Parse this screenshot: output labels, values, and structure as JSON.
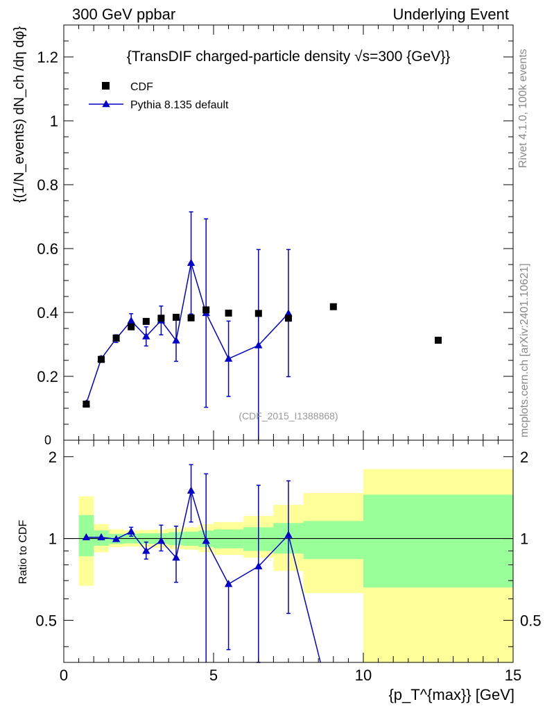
{
  "header": {
    "left": "300 GeV ppbar",
    "right": "Underlying Event"
  },
  "side_labels": {
    "rivet": "Rivet 4.1.0,  100k events",
    "mcplots": "mcplots.cern.ch [arXiv:2401.10621]"
  },
  "chart_data": [
    {
      "type": "scatter",
      "panel": "main",
      "title": "{TransDIF charged-particle density √s=300 {GeV}}",
      "ylabel": "{(1/N_events) dN_ch /dη dφ}",
      "xlabel": "{p_T^{max}} [GeV]",
      "xlim": [
        0,
        15
      ],
      "ylim": [
        0,
        1.3
      ],
      "yticks": [
        0.2,
        0.4,
        0.6,
        0.8,
        1,
        1.2
      ],
      "ytick_labels": [
        "0.2",
        "0.4",
        "0.6",
        "0.8",
        "1",
        "1.2"
      ],
      "legend": [
        {
          "name": "CDF",
          "marker": "square",
          "color": "#000000"
        },
        {
          "name": "Pythia 8.135 default",
          "marker": "triangle",
          "color": "#0000cc"
        }
      ],
      "watermark": "(CDF_2015_I1388868)",
      "series": [
        {
          "name": "CDF",
          "x": [
            0.75,
            1.25,
            1.75,
            2.25,
            2.75,
            3.25,
            3.75,
            4.25,
            4.75,
            5.5,
            6.5,
            7.5,
            9.0,
            12.5
          ],
          "values": [
            0.113,
            0.253,
            0.32,
            0.355,
            0.372,
            0.382,
            0.385,
            0.383,
            0.408,
            0.398,
            0.397,
            0.382,
            0.418,
            0.313
          ]
        },
        {
          "name": "Pythia 8.135 default",
          "x": [
            0.75,
            1.25,
            1.75,
            2.25,
            2.75,
            3.25,
            3.75,
            4.25,
            4.75,
            5.5,
            6.5,
            7.5
          ],
          "values": [
            0.115,
            0.255,
            0.318,
            0.374,
            0.325,
            0.375,
            0.312,
            0.555,
            0.398,
            0.255,
            0.297,
            0.397
          ],
          "err_low": [
            0.005,
            0.008,
            0.012,
            0.022,
            0.03,
            0.045,
            0.065,
            0.16,
            0.295,
            0.118,
            0.31,
            0.198
          ],
          "err_high": [
            0.005,
            0.008,
            0.012,
            0.022,
            0.03,
            0.045,
            0.065,
            0.16,
            0.295,
            0.118,
            0.3,
            0.2
          ]
        }
      ]
    },
    {
      "type": "scatter",
      "panel": "ratio",
      "ylabel": "Ratio to CDF",
      "xlabel": "{p_T^{max}} [GeV]",
      "xlim": [
        0,
        15
      ],
      "ylim": [
        0.35,
        2.3
      ],
      "yscale": "log",
      "yticks": [
        0.5,
        1,
        2
      ],
      "ytick_labels": [
        "0.5",
        "1",
        "2"
      ],
      "xticks": [
        0,
        5,
        10,
        15
      ],
      "xtick_labels": [
        "0",
        "5",
        "10",
        "15"
      ],
      "reference_line": 1,
      "uncertainty_bands": {
        "bin_edges": [
          0.5,
          1.0,
          1.5,
          2.0,
          2.5,
          3.0,
          3.5,
          4.0,
          4.5,
          5.0,
          6.0,
          7.0,
          8.0,
          10.0,
          15.0
        ],
        "inner_low": [
          0.86,
          0.94,
          0.955,
          0.96,
          0.955,
          0.955,
          0.945,
          0.94,
          0.93,
          0.92,
          0.9,
          0.88,
          0.84,
          0.66
        ],
        "inner_high": [
          1.22,
          1.07,
          1.04,
          1.04,
          1.045,
          1.045,
          1.055,
          1.06,
          1.07,
          1.08,
          1.1,
          1.14,
          1.16,
          1.45
        ],
        "outer_low": [
          0.67,
          0.89,
          0.93,
          0.935,
          0.93,
          0.925,
          0.915,
          0.91,
          0.89,
          0.87,
          0.85,
          0.76,
          0.63,
          0.3
        ],
        "outer_high": [
          1.43,
          1.13,
          1.08,
          1.07,
          1.075,
          1.08,
          1.09,
          1.1,
          1.13,
          1.15,
          1.21,
          1.33,
          1.47,
          1.8
        ]
      },
      "series": [
        {
          "name": "Pythia 8.135 default",
          "x": [
            0.75,
            1.25,
            1.75,
            2.25,
            2.75,
            3.25,
            3.75,
            4.25,
            4.75,
            5.5,
            6.5,
            7.5,
            8.57
          ],
          "values": [
            1.01,
            1.01,
            0.995,
            1.06,
            0.9,
            0.98,
            0.85,
            1.5,
            0.98,
            0.68,
            0.79,
            1.03,
            0.35
          ],
          "err_low": [
            0.0,
            0.0,
            0.0,
            0.04,
            0.06,
            0.08,
            0.16,
            0.35,
            0.63,
            0.29,
            0.44,
            0.5,
            0
          ],
          "err_high": [
            0.0,
            0.0,
            0.0,
            0.04,
            0.07,
            0.14,
            0.26,
            0.37,
            0.75,
            0.0,
            0.78,
            0.6,
            0
          ]
        }
      ]
    }
  ]
}
